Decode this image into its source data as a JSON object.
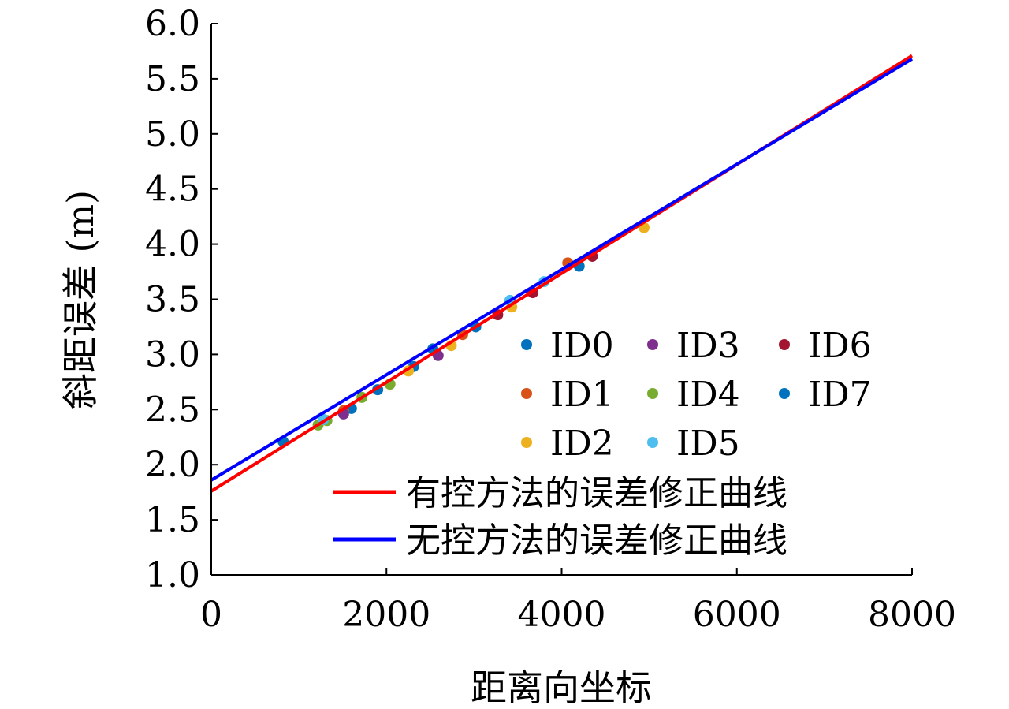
{
  "chart_data": {
    "type": "scatter",
    "xlabel": "距离向坐标",
    "ylabel": "斜距误差 (m)",
    "xlim": [
      0,
      8000
    ],
    "ylim": [
      1.0,
      6.0
    ],
    "x_ticks": [
      0,
      2000,
      4000,
      6000,
      8000
    ],
    "x_tick_labels": [
      "0",
      "2000",
      "4000",
      "6000",
      "8000"
    ],
    "y_ticks": [
      1.0,
      1.5,
      2.0,
      2.5,
      3.0,
      3.5,
      4.0,
      4.5,
      5.0,
      5.5,
      6.0
    ],
    "y_tick_labels": [
      "1.0",
      "1.5",
      "2.0",
      "2.5",
      "3.0",
      "3.5",
      "4.0",
      "4.5",
      "5.0",
      "5.5",
      "6.0"
    ],
    "grid": false,
    "legend_position": "bottom-right",
    "series": [
      {
        "name": "ID0",
        "color": "#0072BD",
        "points": [
          [
            820,
            2.21
          ],
          [
            1600,
            2.51
          ],
          [
            2310,
            2.89
          ],
          [
            2530,
            3.05
          ],
          [
            3020,
            3.25
          ]
        ]
      },
      {
        "name": "ID1",
        "color": "#D95319",
        "points": [
          [
            1510,
            2.49
          ],
          [
            2870,
            3.18
          ],
          [
            4070,
            3.83
          ]
        ]
      },
      {
        "name": "ID2",
        "color": "#EDB120",
        "points": [
          [
            2250,
            2.85
          ],
          [
            2740,
            3.08
          ],
          [
            3430,
            3.43
          ],
          [
            4940,
            4.15
          ]
        ]
      },
      {
        "name": "ID3",
        "color": "#7E2F8E",
        "points": [
          [
            1510,
            2.46
          ],
          [
            2590,
            2.99
          ]
        ]
      },
      {
        "name": "ID4",
        "color": "#77AC30",
        "points": [
          [
            1220,
            2.36
          ],
          [
            1320,
            2.4
          ],
          [
            1720,
            2.61
          ],
          [
            2040,
            2.73
          ]
        ]
      },
      {
        "name": "ID5",
        "color": "#4DBEEE",
        "points": [
          [
            1280,
            2.41
          ],
          [
            3410,
            3.49
          ],
          [
            3800,
            3.66
          ]
        ]
      },
      {
        "name": "ID6",
        "color": "#A2142F",
        "points": [
          [
            3270,
            3.36
          ],
          [
            3670,
            3.56
          ],
          [
            4350,
            3.89
          ]
        ]
      },
      {
        "name": "ID7",
        "color": "#0072BD",
        "points": [
          [
            1900,
            2.68
          ],
          [
            4200,
            3.8
          ]
        ]
      }
    ],
    "lines": [
      {
        "name": "有控方法的误差修正曲线",
        "color": "#FF0000",
        "x": [
          0,
          8000
        ],
        "y": [
          1.76,
          5.71
        ]
      },
      {
        "name": "无控方法的误差修正曲线",
        "color": "#0000FF",
        "x": [
          0,
          8000
        ],
        "y": [
          1.86,
          5.68
        ]
      }
    ]
  }
}
